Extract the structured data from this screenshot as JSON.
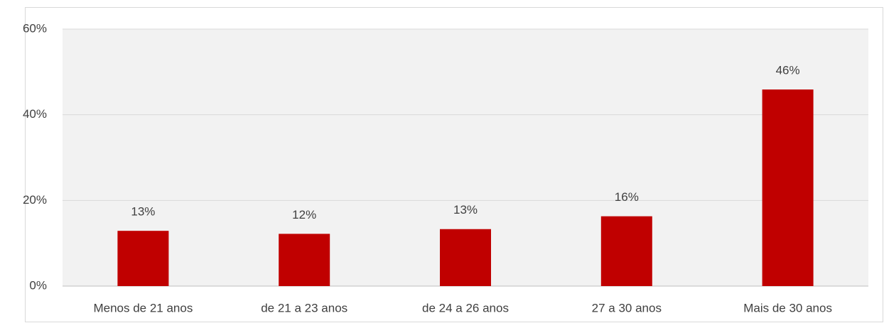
{
  "chart_data": {
    "type": "bar",
    "categories": [
      "Menos de 21 anos",
      "de 21 a 23 anos",
      "de 24 a 26 anos",
      "27 a 30 anos",
      "Mais de 30 anos"
    ],
    "values": [
      12.9,
      12.2,
      13.3,
      16.3,
      45.9
    ],
    "value_labels": [
      "13%",
      "12%",
      "13%",
      "16%",
      "46%"
    ],
    "color": "#c00000",
    "ylim": [
      0,
      60
    ],
    "yticks": [
      {
        "value": 0,
        "label": "0%"
      },
      {
        "value": 20,
        "label": "20%"
      },
      {
        "value": 40,
        "label": "40%"
      },
      {
        "value": 60,
        "label": "60%"
      }
    ],
    "grid": true
  }
}
